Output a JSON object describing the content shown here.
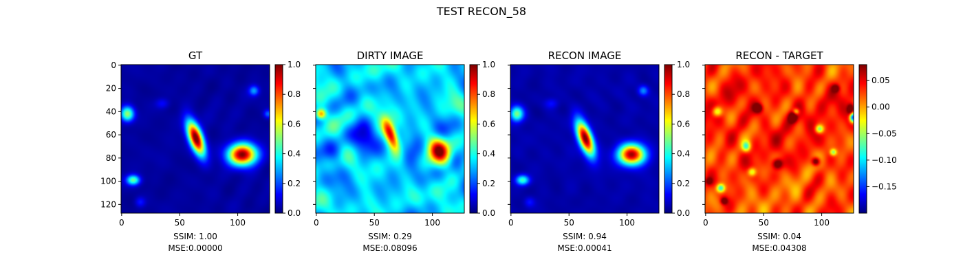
{
  "figure_title": "TEST RECON_58",
  "colors": {
    "colormap": "jet",
    "background": "#ffffff",
    "axes": "#000000"
  },
  "chart_data": [
    {
      "type": "heatmap",
      "title": "GT",
      "image_extent": [
        0,
        128
      ],
      "xticks": [
        "0",
        "50",
        "100"
      ],
      "yticks": [
        "0",
        "20",
        "40",
        "60",
        "80",
        "100",
        "120"
      ],
      "show_ytick_labels": true,
      "colorbar": {
        "range": [
          0.0,
          1.0
        ],
        "ticks": [
          "0.0",
          "0.2",
          "0.4",
          "0.6",
          "0.8",
          "1.0"
        ],
        "tick_values": [
          0,
          0.2,
          0.4,
          0.6,
          0.8,
          1.0
        ]
      },
      "stats": {
        "ssim": "SSIM: 1.00",
        "mse": "MSE:0.00000"
      },
      "blobs": [
        {
          "x": 64,
          "y": 63,
          "sx": 4.0,
          "sy": 11,
          "rot": 0.35,
          "a": 1.0
        },
        {
          "x": 104,
          "y": 77,
          "sx": 8.5,
          "sy": 6.5,
          "rot": 0,
          "a": 0.98
        },
        {
          "x": 5,
          "y": 42,
          "sx": 4,
          "sy": 4.5,
          "rot": 0,
          "a": 0.5
        },
        {
          "x": 10,
          "y": 99,
          "sx": 4,
          "sy": 3,
          "rot": 0,
          "a": 0.45
        },
        {
          "x": 114,
          "y": 22,
          "sx": 3,
          "sy": 3,
          "rot": 0,
          "a": 0.25
        },
        {
          "x": 35,
          "y": 33,
          "sx": 4,
          "sy": 3,
          "rot": 0,
          "a": 0.1
        },
        {
          "x": 16,
          "y": 118,
          "sx": 3,
          "sy": 3,
          "rot": 0,
          "a": 0.12
        },
        {
          "x": 126,
          "y": 42,
          "sx": 2.5,
          "sy": 2.5,
          "rot": 0,
          "a": 0.2
        }
      ],
      "base": 0.03,
      "noise": 0.015
    },
    {
      "type": "heatmap",
      "title": "DIRTY IMAGE",
      "image_extent": [
        0,
        128
      ],
      "xticks": [
        "0",
        "50",
        "100"
      ],
      "yticks": [
        "0",
        "20",
        "40",
        "60",
        "80",
        "100",
        "120"
      ],
      "show_ytick_labels": false,
      "colorbar": {
        "range": [
          0.0,
          1.0
        ],
        "ticks": [
          "0.0",
          "0.2",
          "0.4",
          "0.6",
          "0.8",
          "1.0"
        ],
        "tick_values": [
          0,
          0.2,
          0.4,
          0.6,
          0.8,
          1.0
        ]
      },
      "stats": {
        "ssim": "SSIM: 0.29",
        "mse": "MSE:0.08096"
      },
      "blobs": [
        {
          "x": 64,
          "y": 60,
          "sx": 3.5,
          "sy": 10,
          "rot": 0.35,
          "a": 0.62
        },
        {
          "x": 106,
          "y": 74,
          "sx": 6,
          "sy": 8,
          "rot": 0.4,
          "a": 0.6
        },
        {
          "x": 4,
          "y": 42,
          "sx": 3,
          "sy": 3,
          "rot": 0,
          "a": 0.45
        },
        {
          "x": 40,
          "y": 65,
          "sx": 7,
          "sy": 9,
          "rot": 0,
          "a": -0.22
        },
        {
          "x": 85,
          "y": 70,
          "sx": 6,
          "sy": 10,
          "rot": 0,
          "a": -0.15
        },
        {
          "x": 15,
          "y": 75,
          "sx": 8,
          "sy": 6,
          "rot": 0,
          "a": -0.1
        }
      ],
      "base": 0.33,
      "noise": 0.11
    },
    {
      "type": "heatmap",
      "title": "RECON IMAGE",
      "image_extent": [
        0,
        128
      ],
      "xticks": [
        "0",
        "50",
        "100"
      ],
      "yticks": [
        "0",
        "20",
        "40",
        "60",
        "80",
        "100",
        "120"
      ],
      "show_ytick_labels": false,
      "colorbar": {
        "range": [
          0.0,
          1.0
        ],
        "ticks": [
          "0.0",
          "0.2",
          "0.4",
          "0.6",
          "0.8",
          "1.0"
        ],
        "tick_values": [
          0,
          0.2,
          0.4,
          0.6,
          0.8,
          1.0
        ]
      },
      "stats": {
        "ssim": "SSIM: 0.94",
        "mse": "MSE:0.00041"
      },
      "blobs": [
        {
          "x": 64,
          "y": 63,
          "sx": 4.0,
          "sy": 11,
          "rot": 0.35,
          "a": 0.98
        },
        {
          "x": 104,
          "y": 77,
          "sx": 8.0,
          "sy": 6.2,
          "rot": 0,
          "a": 0.93
        },
        {
          "x": 5,
          "y": 42,
          "sx": 4,
          "sy": 4.5,
          "rot": 0,
          "a": 0.45
        },
        {
          "x": 10,
          "y": 99,
          "sx": 4,
          "sy": 3,
          "rot": 0,
          "a": 0.4
        },
        {
          "x": 114,
          "y": 22,
          "sx": 3,
          "sy": 3,
          "rot": 0,
          "a": 0.22
        },
        {
          "x": 35,
          "y": 33,
          "sx": 4,
          "sy": 3,
          "rot": 0,
          "a": 0.1
        },
        {
          "x": 16,
          "y": 118,
          "sx": 3,
          "sy": 3,
          "rot": 0,
          "a": 0.1
        }
      ],
      "base": 0.04,
      "noise": 0.015
    },
    {
      "type": "heatmap",
      "title": "RECON - TARGET",
      "image_extent": [
        0,
        128
      ],
      "xticks": [
        "0",
        "50",
        "100"
      ],
      "yticks": [
        "0",
        "20",
        "40",
        "60",
        "80",
        "100",
        "120"
      ],
      "show_ytick_labels": false,
      "colorbar": {
        "range": [
          -0.2,
          0.08
        ],
        "ticks": [
          "0.05",
          "0.00",
          "−0.05",
          "−0.10",
          "−0.15"
        ],
        "tick_values": [
          0.05,
          0.0,
          -0.05,
          -0.1,
          -0.15
        ]
      },
      "stats": {
        "ssim": "SSIM: 0.04",
        "mse": "MSE:0.04308"
      },
      "blobs": [
        {
          "x": 45,
          "y": 37,
          "sx": 2.5,
          "sy": 2.5,
          "rot": 0,
          "a": 0.1
        },
        {
          "x": 75,
          "y": 45,
          "sx": 2.5,
          "sy": 3,
          "rot": 0,
          "a": 0.1
        },
        {
          "x": 62,
          "y": 85,
          "sx": 3,
          "sy": 3,
          "rot": 0,
          "a": 0.09
        },
        {
          "x": 95,
          "y": 83,
          "sx": 2.5,
          "sy": 2.5,
          "rot": 0,
          "a": 0.1
        },
        {
          "x": 112,
          "y": 20,
          "sx": 2,
          "sy": 2,
          "rot": 0,
          "a": 0.08
        },
        {
          "x": 125,
          "y": 38,
          "sx": 2,
          "sy": 3,
          "rot": 0,
          "a": 0.1
        },
        {
          "x": 16,
          "y": 117,
          "sx": 2,
          "sy": 2,
          "rot": 0,
          "a": 0.08
        },
        {
          "x": 3,
          "y": 100,
          "sx": 2,
          "sy": 2,
          "rot": 0,
          "a": 0.06
        },
        {
          "x": 127,
          "y": 45,
          "sx": 2,
          "sy": 3,
          "rot": 0,
          "a": -0.2
        },
        {
          "x": 10,
          "y": 40,
          "sx": 3,
          "sy": 3,
          "rot": 0,
          "a": -0.09
        },
        {
          "x": 35,
          "y": 70,
          "sx": 2.5,
          "sy": 3,
          "rot": 0,
          "a": -0.1
        },
        {
          "x": 13,
          "y": 106,
          "sx": 2.5,
          "sy": 2.5,
          "rot": 0,
          "a": -0.12
        },
        {
          "x": 98,
          "y": 55,
          "sx": 2.5,
          "sy": 2.5,
          "rot": 0,
          "a": -0.1
        },
        {
          "x": 110,
          "y": 75,
          "sx": 2,
          "sy": 2,
          "rot": 0,
          "a": -0.09
        },
        {
          "x": 78,
          "y": 40,
          "sx": 2,
          "sy": 2,
          "rot": 0,
          "a": -0.08
        },
        {
          "x": 40,
          "y": 92,
          "sx": 2.5,
          "sy": 2.5,
          "rot": 0,
          "a": -0.08
        }
      ],
      "base": 0.03,
      "noise": 0.03
    }
  ]
}
